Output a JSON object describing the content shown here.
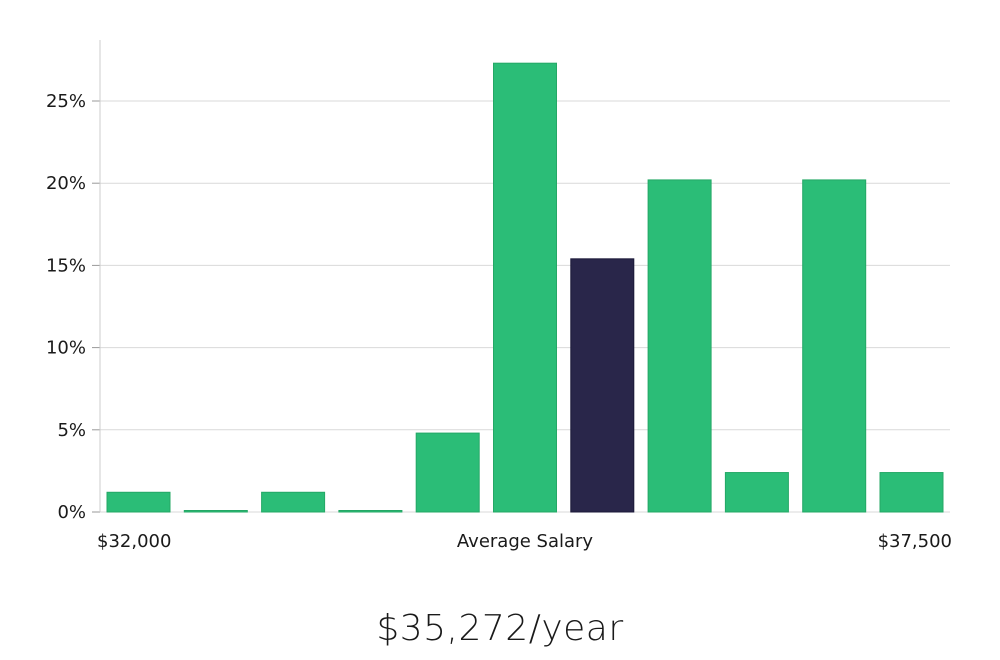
{
  "chart_data": {
    "type": "bar",
    "title": "",
    "xlabel": "Average Salary",
    "ylabel": "",
    "x_range_labels": {
      "min": "$32,000",
      "max": "$37,500"
    },
    "ylim": [
      0,
      0.28
    ],
    "yticks": [
      0,
      0.05,
      0.1,
      0.15,
      0.2,
      0.25
    ],
    "ytick_labels": [
      "0%",
      "5%",
      "10%",
      "15%",
      "20%",
      "25%"
    ],
    "grid": true,
    "values": [
      0.012,
      0.0,
      0.012,
      0.0,
      0.048,
      0.273,
      0.154,
      0.202,
      0.024,
      0.202,
      0.024
    ],
    "highlight_index": 6,
    "colors": {
      "bar": "#2bbd77",
      "highlight": "#29264a"
    }
  },
  "headline": {
    "salary": "$35,272/year"
  }
}
